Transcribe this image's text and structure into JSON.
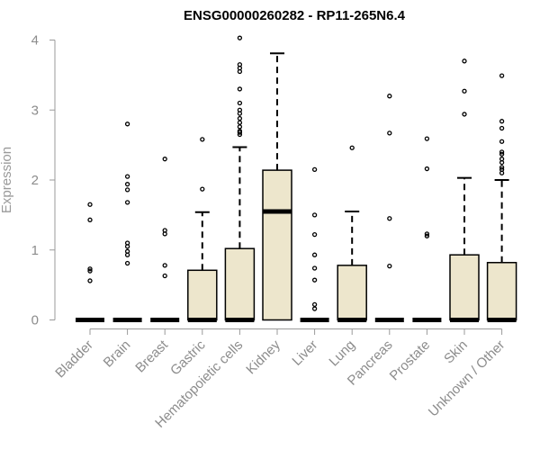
{
  "chart_data": {
    "type": "box",
    "title": "ENSG00000260282 - RP11-265N6.4",
    "xlabel": "",
    "ylabel": "Expression",
    "ylim": [
      0,
      4
    ],
    "yticks": [
      0,
      1,
      2,
      3,
      4
    ],
    "grid": false,
    "box_fill": "#ede6cc",
    "categories": [
      "Bladder",
      "Brain",
      "Breast",
      "Gastric",
      "Hematopoietic cells",
      "Kidney",
      "Liver",
      "Lung",
      "Pancreas",
      "Prostate",
      "Skin",
      "Unknown / Other"
    ],
    "boxes": [
      {
        "q1": 0,
        "median": 0,
        "q3": 0,
        "whisker_low": 0,
        "whisker_high": 0,
        "outliers": [
          1.65,
          1.43,
          0.73,
          0.7,
          0.56
        ]
      },
      {
        "q1": 0,
        "median": 0,
        "q3": 0,
        "whisker_low": 0,
        "whisker_high": 0,
        "outliers": [
          2.8,
          2.05,
          1.94,
          1.86,
          1.68,
          1.1,
          1.05,
          0.98,
          0.93,
          0.81
        ]
      },
      {
        "q1": 0,
        "median": 0,
        "q3": 0,
        "whisker_low": 0,
        "whisker_high": 0,
        "outliers": [
          2.3,
          1.28,
          1.23,
          0.78,
          0.63
        ]
      },
      {
        "q1": 0,
        "median": 0,
        "q3": 0.71,
        "whisker_low": 0,
        "whisker_high": 1.54,
        "outliers": [
          2.58,
          1.87
        ]
      },
      {
        "q1": 0,
        "median": 0,
        "q3": 1.02,
        "whisker_low": 0,
        "whisker_high": 2.47,
        "outliers": [
          4.03,
          3.65,
          3.6,
          3.55,
          3.3,
          3.1,
          3.0,
          2.95,
          2.88,
          2.82,
          2.76,
          2.7,
          2.68,
          2.65
        ]
      },
      {
        "q1": 0,
        "median": 1.55,
        "q3": 2.14,
        "whisker_low": 0,
        "whisker_high": 3.81,
        "outliers": []
      },
      {
        "q1": 0,
        "median": 0,
        "q3": 0,
        "whisker_low": 0,
        "whisker_high": 0,
        "outliers": [
          2.15,
          1.5,
          1.22,
          0.93,
          0.74,
          0.57,
          0.22,
          0.16
        ]
      },
      {
        "q1": 0,
        "median": 0,
        "q3": 0.78,
        "whisker_low": 0,
        "whisker_high": 1.55,
        "outliers": [
          2.46
        ]
      },
      {
        "q1": 0,
        "median": 0,
        "q3": 0,
        "whisker_low": 0,
        "whisker_high": 0,
        "outliers": [
          3.2,
          2.67,
          1.45,
          0.77
        ]
      },
      {
        "q1": 0,
        "median": 0,
        "q3": 0,
        "whisker_low": 0,
        "whisker_high": 0,
        "outliers": [
          2.59,
          2.16,
          1.23,
          1.2
        ]
      },
      {
        "q1": 0,
        "median": 0,
        "q3": 0.93,
        "whisker_low": 0,
        "whisker_high": 2.03,
        "outliers": [
          3.7,
          3.27,
          2.94
        ]
      },
      {
        "q1": 0,
        "median": 0,
        "q3": 0.82,
        "whisker_low": 0,
        "whisker_high": 2.0,
        "outliers": [
          3.49,
          2.84,
          2.74,
          2.55,
          2.4,
          2.37,
          2.3,
          2.25,
          2.18,
          2.15,
          2.1
        ]
      }
    ]
  }
}
